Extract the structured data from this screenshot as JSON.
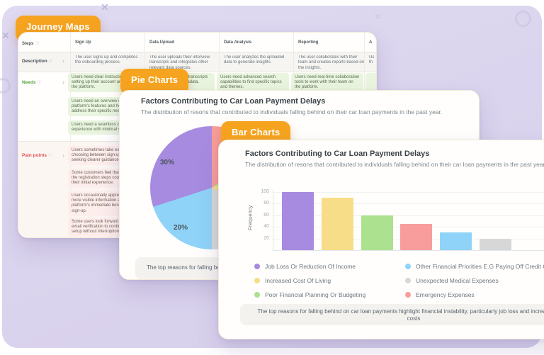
{
  "canvas": {
    "background_color": "#dbd5ee",
    "accent_orange": "#f6a41f"
  },
  "badges": {
    "journey": "Journey Maps",
    "pie": "Pie Charts",
    "bar": "Bar Charts"
  },
  "journey_table": {
    "headers": [
      "Steps",
      "Sign Up",
      "Data Upload",
      "Data Analysis",
      "Reporting",
      "A"
    ],
    "description": {
      "label": "Description",
      "cells": [
        "The user signs up and completes the onboarding process.",
        "The user uploads their interview transcripts and integrates other relevant data sources.",
        "The user analyzes the uploaded data to generate insights.",
        "The user collaborates with their team and creates reports based on the insights.",
        "Us\nth"
      ]
    },
    "needs": {
      "label": "Needs",
      "signup_boxes": [
        "Users need clear instructio\nsetting up their account an\nthe platform.",
        "Users need an overview of t\nplatform's features and ho\naddress their specific need",
        "Users need a seamless onb\nexperience with minimal st"
      ],
      "upload_box": "upload transcripts\nnd metadata.",
      "analysis_box": "Users need advanced search capabilities to find specific topics and themes.",
      "reporting_box": "Users need real-time collaboration tools to work with their team on the platform."
    },
    "pain": {
      "label": "Pain points",
      "signup_boxes": [
        "Users sometimes take extr\nchoosing between sign-up\nseeking clearer guidance.",
        "Some customers feel that s\nthe registration steps coul\ntheir initial experience.",
        "Users occasionally appreci\nmore visible information ab\nplatform's immediate bene\nsign-up.",
        "Some users look forward to\nemail verification to continu\nsetup without interruptions"
      ]
    }
  },
  "pie_card": {
    "title": "Factors Contributing to Car Loan Payment Delays",
    "subtitle": "The distribution of resons that contributed to individuals falling behind on their car loan payments in the past year.",
    "slice_labels": [
      "30%",
      "20%"
    ],
    "note": "The top reasons for falling behind on car loan payments highlight financial instability, particularly job loss and increased living costs"
  },
  "bar_card": {
    "title": "Factors Contributing to Car Loan Payment Delays",
    "subtitle": "The distribution of resons that contributed to individuals falling behind on their car loan payments in the past year.",
    "ylabel": "Frequency",
    "legend_col1": [
      {
        "label": "Job Loss Or Reduction Of Income",
        "color": "#a78be0"
      },
      {
        "label": "Increased Cost Of Living",
        "color": "#f7dd87"
      },
      {
        "label": "Poor Financial Planning Or Budgeting",
        "color": "#abe18f"
      }
    ],
    "legend_col2": [
      {
        "label": "Other Financial Priorities E.G Paying Off Credit Card Debt",
        "color": "#8fd3f8"
      },
      {
        "label": "Unexpected Medical Expenses",
        "color": "#d7d7d7"
      },
      {
        "label": "Emergency Expenses",
        "color": "#f89d9b"
      }
    ],
    "note_line1": "The top reasons for falling behind on car loan payments highlight financial instability, particularly job loss and increased living",
    "note_line2": "costs"
  },
  "chart_data": [
    {
      "type": "pie",
      "title": "Factors Contributing to Car Loan Payment Delays",
      "subtitle": "The distribution of resons that contributed to individuals falling behind on their car loan payments in the past year.",
      "visible_labels": [
        "30%",
        "20%"
      ],
      "slices_clockwise_from_top": [
        {
          "label": "Emergency Expenses",
          "color": "#f89d9b",
          "percent": 15
        },
        {
          "label": "Poor Financial Planning Or Budgeting",
          "color": "#abe18f",
          "percent": 4
        },
        {
          "label": "Increased Cost Of Living",
          "color": "#f7dd87",
          "percent": 13
        },
        {
          "label": "Unexpected Medical Expenses",
          "color": "#d7d7d7",
          "percent": 18
        },
        {
          "label": "Other Financial Priorities E.G Paying Off Credit Card Debt",
          "color": "#8fd3f8",
          "percent": 20
        },
        {
          "label": "Job Loss Or Reduction Of Income",
          "color": "#a78be0",
          "percent": 30
        }
      ]
    },
    {
      "type": "bar",
      "title": "Factors Contributing to Car Loan Payment Delays",
      "subtitle": "The distribution of resons that contributed to individuals falling behind on their car loan payments in the past year.",
      "categories": [
        "Job Loss Or Reduction Of Income",
        "Increased Cost Of Living",
        "Poor Financial Planning Or Budgeting",
        "Emergency Expenses",
        "Other Financial Priorities E.G Paying Off Credit Card Debt",
        "Unexpected Medical Expenses"
      ],
      "values": [
        100,
        90,
        60,
        45,
        30,
        20
      ],
      "colors": [
        "#a78be0",
        "#f7dd87",
        "#abe18f",
        "#f89d9b",
        "#8fd3f8",
        "#d7d7d7"
      ],
      "ylabel": "Frequency",
      "ylim": [
        0,
        100
      ],
      "yticks": [
        20,
        40,
        60,
        80,
        100
      ],
      "grid": true,
      "legend_position": "bottom"
    }
  ]
}
